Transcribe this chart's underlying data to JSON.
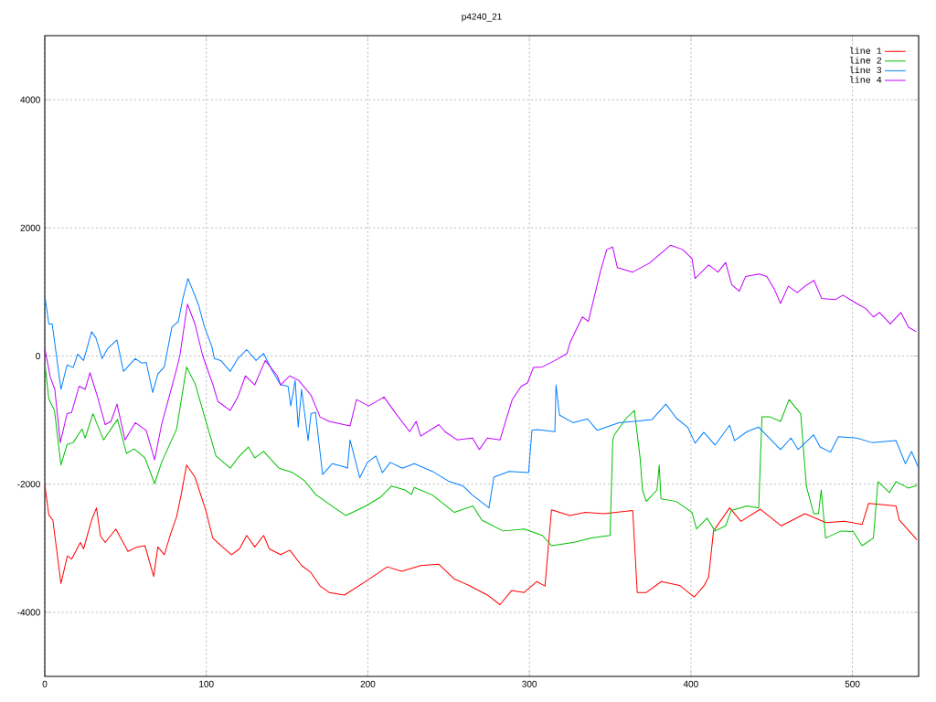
{
  "chart_data": {
    "type": "line",
    "title": "p4240_21",
    "xlim": [
      0,
      541
    ],
    "ylim": [
      -5000,
      5000
    ],
    "xticks": [
      0,
      100,
      200,
      300,
      400,
      500
    ],
    "yticks": [
      -4000,
      -2000,
      0,
      2000,
      4000
    ],
    "grid": true,
    "legend": "top right",
    "series": [
      {
        "name": "line 1",
        "color": "#ff0000",
        "x": [
          0,
          2.5,
          5,
          10,
          14,
          16.6,
          22,
          24,
          29,
          32,
          34.5,
          37.4,
          44,
          51.5,
          57,
          62,
          67.4,
          70,
          74,
          78,
          81.6,
          84.4,
          87.8,
          93,
          99.7,
          104,
          110,
          115.6,
          120.5,
          125,
          130,
          135.5,
          139,
          146,
          151.7,
          159,
          164.8,
          170.5,
          176,
          185.5,
          199.7,
          212,
          221,
          232.7,
          244,
          253.5,
          262.7,
          274,
          281.8,
          289,
          296.8,
          304.5,
          309.7,
          313.7,
          325,
          334.7,
          346,
          364,
          366.8,
          372.4,
          381.7,
          393,
          402,
          408,
          411,
          414,
          424,
          431,
          443,
          456,
          470.6,
          483.6,
          495,
          506,
          510,
          527,
          529,
          540
        ],
        "values": [
          -2000,
          -2480,
          -2560,
          -3550,
          -3120,
          -3170,
          -2910,
          -3010,
          -2560,
          -2370,
          -2810,
          -2910,
          -2700,
          -3050,
          -2980,
          -2960,
          -3440,
          -2980,
          -3100,
          -2770,
          -2510,
          -2170,
          -1700,
          -1890,
          -2410,
          -2840,
          -2980,
          -3100,
          -3010,
          -2800,
          -2980,
          -2800,
          -3010,
          -3100,
          -3030,
          -3270,
          -3380,
          -3590,
          -3690,
          -3730,
          -3500,
          -3290,
          -3360,
          -3270,
          -3250,
          -3480,
          -3580,
          -3730,
          -3880,
          -3660,
          -3690,
          -3520,
          -3590,
          -2400,
          -2490,
          -2440,
          -2460,
          -2410,
          -3690,
          -3690,
          -3520,
          -3580,
          -3760,
          -3590,
          -3450,
          -2730,
          -2370,
          -2580,
          -2390,
          -2650,
          -2460,
          -2600,
          -2580,
          -2630,
          -2300,
          -2340,
          -2560,
          -2870
        ]
      },
      {
        "name": "line 2",
        "color": "#00c000",
        "x": [
          0,
          2.5,
          6,
          10,
          13.8,
          17.6,
          23,
          25,
          29.8,
          36.4,
          45,
          50.6,
          55.3,
          62,
          68,
          72.3,
          81.6,
          87.8,
          93,
          100.6,
          106,
          114.8,
          119.5,
          126,
          130,
          135.5,
          145,
          153.5,
          161,
          167.6,
          176,
          186.4,
          198.8,
          208,
          214.6,
          223,
          227,
          228.8,
          240,
          253.6,
          265,
          270.6,
          283.7,
          296.8,
          308,
          313.7,
          327,
          338.6,
          350,
          351.6,
          352.6,
          360,
          365,
          368.6,
          370,
          372.4,
          379,
          380.4,
          381.5,
          391,
          400.7,
          403.5,
          410,
          414.9,
          421.5,
          425,
          434.7,
          442,
          444,
          449,
          455.5,
          460.8,
          468,
          471.5,
          476,
          479,
          480.7,
          483.4,
          493,
          500.5,
          506,
          513,
          515.8,
          523,
          527,
          534.5,
          540
        ],
        "values": [
          -100,
          -670,
          -850,
          -1700,
          -1380,
          -1350,
          -1140,
          -1280,
          -900,
          -1310,
          -990,
          -1520,
          -1450,
          -1590,
          -1990,
          -1660,
          -1140,
          -170,
          -430,
          -1090,
          -1560,
          -1750,
          -1590,
          -1420,
          -1590,
          -1490,
          -1750,
          -1820,
          -1950,
          -2160,
          -2310,
          -2490,
          -2340,
          -2200,
          -2030,
          -2090,
          -2160,
          -2050,
          -2170,
          -2440,
          -2340,
          -2560,
          -2730,
          -2700,
          -2800,
          -2960,
          -2910,
          -2840,
          -2800,
          -1320,
          -1230,
          -970,
          -850,
          -1600,
          -2090,
          -2270,
          -2090,
          -1700,
          -2230,
          -2270,
          -2440,
          -2700,
          -2530,
          -2730,
          -2650,
          -2410,
          -2340,
          -2370,
          -950,
          -950,
          -1020,
          -680,
          -900,
          -2030,
          -2460,
          -2460,
          -2090,
          -2840,
          -2730,
          -2740,
          -2960,
          -2840,
          -1960,
          -2130,
          -1960,
          -2060,
          -2020
        ]
      },
      {
        "name": "line 3",
        "color": "#0080ff",
        "x": [
          0,
          2.5,
          4.6,
          10,
          13.8,
          17.6,
          20.4,
          24,
          29,
          31.7,
          35.5,
          39,
          44.7,
          48.7,
          56,
          60,
          62.8,
          66.8,
          70,
          74,
          78.7,
          82.7,
          85.5,
          88.7,
          95,
          98.7,
          103.5,
          105,
          109,
          114.8,
          119.5,
          125,
          130.8,
          135.5,
          141,
          146,
          150.6,
          152.3,
          155,
          156.9,
          159,
          163,
          164.8,
          167.6,
          172,
          178,
          185.5,
          187.4,
          189,
          195,
          199.7,
          205,
          209,
          213.9,
          221.4,
          228.8,
          240,
          249.7,
          259,
          264.8,
          275,
          278,
          287.5,
          299.5,
          301.6,
          305,
          315.8,
          316.5,
          318.6,
          327,
          336,
          342,
          355.4,
          365,
          376,
          384.5,
          391,
          398,
          402.6,
          408,
          414.9,
          424,
          427,
          434.7,
          442,
          455.5,
          462,
          466.4,
          476,
          480,
          486.4,
          491.3,
          502.7,
          512,
          527,
          532.8,
          536.6,
          541
        ],
        "values": [
          950,
          500,
          500,
          -520,
          -140,
          -180,
          30,
          -70,
          380,
          280,
          -40,
          120,
          250,
          -240,
          -40,
          -110,
          -100,
          -570,
          -280,
          -170,
          450,
          540,
          900,
          1210,
          810,
          470,
          140,
          -40,
          -70,
          -240,
          -40,
          100,
          -70,
          40,
          -240,
          -450,
          -470,
          -780,
          -380,
          -1110,
          -520,
          -1320,
          -900,
          -880,
          -1850,
          -1680,
          -1730,
          -1750,
          -1310,
          -1900,
          -1660,
          -1560,
          -1820,
          -1660,
          -1750,
          -1680,
          -1800,
          -1950,
          -2030,
          -2170,
          -2370,
          -1890,
          -1800,
          -1820,
          -1160,
          -1150,
          -1180,
          -450,
          -920,
          -1040,
          -980,
          -1160,
          -1040,
          -1020,
          -990,
          -750,
          -970,
          -1110,
          -1360,
          -1190,
          -1390,
          -1080,
          -1320,
          -1180,
          -1110,
          -1460,
          -1280,
          -1460,
          -1230,
          -1420,
          -1500,
          -1260,
          -1280,
          -1350,
          -1320,
          -1680,
          -1490,
          -1750
        ]
      },
      {
        "name": "line 4",
        "color": "#c000ff",
        "x": [
          0,
          3.4,
          6.2,
          9.6,
          13.8,
          16.6,
          21.3,
          25,
          28,
          32.7,
          37.4,
          41,
          44.7,
          49.7,
          56,
          62.8,
          68,
          72.3,
          80.8,
          83.6,
          88.3,
          93,
          97.8,
          104.4,
          107.2,
          114.8,
          119.5,
          124.2,
          130,
          136.5,
          144,
          146,
          151.6,
          157.2,
          164.8,
          170.4,
          176,
          189,
          193,
          200.5,
          210,
          217.4,
          225.9,
          229.9,
          232.7,
          244,
          247.8,
          255.4,
          264.8,
          269,
          274,
          281.8,
          289.4,
          295,
          298.8,
          302.5,
          308.2,
          315.8,
          323.3,
          325.2,
          332.8,
          336.5,
          344,
          347.9,
          351.6,
          354.5,
          364,
          374.3,
          387.5,
          395,
          400.7,
          402.6,
          411,
          416.8,
          421.5,
          425.3,
          430,
          433.8,
          442.3,
          447,
          451.7,
          455.5,
          460.3,
          465.9,
          470.6,
          476.2,
          480.9,
          489.4,
          494.1,
          502.6,
          508.3,
          513,
          516.8,
          523.4,
          530,
          534.7,
          539.5
        ],
        "values": [
          120,
          -330,
          -520,
          -1350,
          -900,
          -880,
          -470,
          -520,
          -260,
          -640,
          -1070,
          -1020,
          -750,
          -1310,
          -1040,
          -1160,
          -1620,
          -1070,
          -280,
          0,
          810,
          500,
          0,
          -470,
          -710,
          -850,
          -640,
          -310,
          -450,
          -70,
          -310,
          -450,
          -310,
          -380,
          -610,
          -950,
          -1020,
          -1090,
          -680,
          -780,
          -640,
          -900,
          -1180,
          -1020,
          -1250,
          -1070,
          -1180,
          -1310,
          -1280,
          -1460,
          -1280,
          -1310,
          -680,
          -470,
          -420,
          -180,
          -170,
          -70,
          40,
          210,
          610,
          540,
          1320,
          1660,
          1700,
          1380,
          1310,
          1450,
          1730,
          1660,
          1520,
          1210,
          1420,
          1310,
          1460,
          1110,
          1010,
          1240,
          1280,
          1240,
          1040,
          820,
          1090,
          990,
          1090,
          1180,
          900,
          880,
          950,
          820,
          740,
          610,
          680,
          500,
          680,
          450,
          380
        ]
      }
    ]
  }
}
